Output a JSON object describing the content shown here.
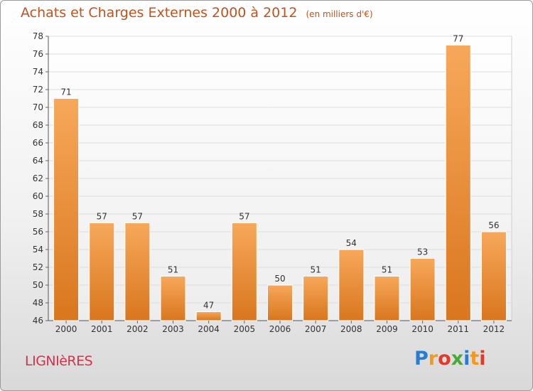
{
  "title": "Achats et Charges Externes 2000 à 2012",
  "subtitle": "(en milliers d'€)",
  "city": "LIGNIèRES",
  "logo": {
    "letters": [
      "P",
      "r",
      "o",
      "x",
      "i",
      "t",
      "i"
    ],
    "colors": [
      "#2a7bd4",
      "#f29a1f",
      "#e03a2a",
      "#4aa83a",
      "#2a7bd4",
      "#f29a1f",
      "#e03a2a"
    ]
  },
  "colors": {
    "title": "#c0531e",
    "city": "#d8304a",
    "bar_light": "#f7a85a",
    "bar_dark": "#d9761e",
    "grid": "#dddddd"
  },
  "chart_data": {
    "type": "bar",
    "categories": [
      "2000",
      "2001",
      "2002",
      "2003",
      "2004",
      "2005",
      "2006",
      "2007",
      "2008",
      "2009",
      "2010",
      "2011",
      "2012"
    ],
    "values": [
      71,
      57,
      57,
      51,
      47,
      57,
      50,
      51,
      54,
      51,
      53,
      77,
      56
    ],
    "data_labels": [
      "71",
      "57",
      "57",
      "51",
      "47",
      "57",
      "50",
      "51",
      "54",
      "51",
      "53",
      "77",
      "56"
    ],
    "ylim": [
      46,
      78
    ],
    "yticks": [
      46,
      48,
      50,
      52,
      54,
      56,
      58,
      60,
      62,
      64,
      66,
      68,
      70,
      72,
      74,
      76,
      78
    ],
    "grid": true
  }
}
